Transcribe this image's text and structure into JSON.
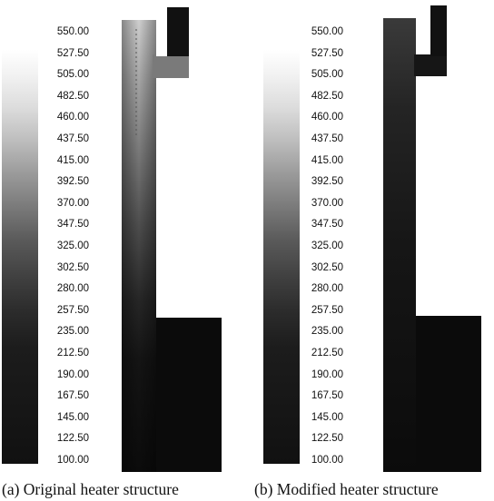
{
  "scale_ticks": [
    "550.00",
    "527.50",
    "505.00",
    "482.50",
    "460.00",
    "437.50",
    "415.00",
    "392.50",
    "370.00",
    "347.50",
    "325.00",
    "302.50",
    "280.00",
    "257.50",
    "235.00",
    "212.50",
    "190.00",
    "167.50",
    "145.00",
    "122.50",
    "100.00"
  ],
  "panels": [
    {
      "caption": "(a) Original heater structure"
    },
    {
      "caption": "(b) Modified heater structure"
    }
  ]
}
